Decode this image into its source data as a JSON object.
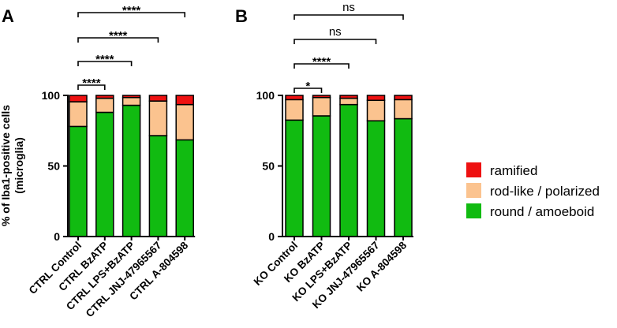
{
  "chart_data": [
    {
      "panel": "A",
      "type": "bar",
      "stacked": true,
      "ylabel": "% of Iba1-positive cells\n(microglia)",
      "ylim": [
        0,
        100
      ],
      "yticks": [
        0,
        50,
        100
      ],
      "categories": [
        "CTRL Control",
        "CTRL BzATP",
        "CTRL LPS+BzATP",
        "CTRL JNJ-47965567",
        "CTRL A-804598"
      ],
      "series": [
        {
          "name": "round / amoeboid",
          "color": "#11bb11",
          "values": [
            78,
            88,
            93,
            71.5,
            68.5
          ]
        },
        {
          "name": "rod-like / polarized",
          "color": "#fbc38f",
          "values": [
            17.5,
            10,
            5.5,
            24.5,
            25
          ]
        },
        {
          "name": "ramified",
          "color": "#ee1111",
          "values": [
            4.5,
            2,
            1.5,
            4,
            6.5
          ]
        }
      ],
      "comparisons": [
        {
          "from": 0,
          "to": 1,
          "label": "****"
        },
        {
          "from": 0,
          "to": 2,
          "label": "****"
        },
        {
          "from": 0,
          "to": 3,
          "label": "****"
        },
        {
          "from": 0,
          "to": 4,
          "label": "****"
        }
      ]
    },
    {
      "panel": "B",
      "type": "bar",
      "stacked": true,
      "ylim": [
        0,
        100
      ],
      "yticks": [
        0,
        50,
        100
      ],
      "categories": [
        "KO Control",
        "KO BzATP",
        "KO LPS+BzATP",
        "KO JNJ-47965567",
        "KO A-804598"
      ],
      "series": [
        {
          "name": "round / amoeboid",
          "color": "#11bb11",
          "values": [
            82.5,
            85.5,
            93.5,
            82,
            83.5
          ]
        },
        {
          "name": "rod-like / polarized",
          "color": "#fbc38f",
          "values": [
            14.5,
            13,
            4.5,
            14.5,
            13.5
          ]
        },
        {
          "name": "ramified",
          "color": "#ee1111",
          "values": [
            3,
            1.5,
            2,
            3.5,
            3
          ]
        }
      ],
      "comparisons": [
        {
          "from": 0,
          "to": 1,
          "label": "*"
        },
        {
          "from": 0,
          "to": 2,
          "label": "****"
        },
        {
          "from": 0,
          "to": 3,
          "label": "ns"
        },
        {
          "from": 0,
          "to": 4,
          "label": "ns"
        }
      ]
    }
  ],
  "legend": {
    "placement": "right",
    "items": [
      {
        "label": "ramified",
        "color": "#ee1111"
      },
      {
        "label": "rod-like / polarized",
        "color": "#fbc38f"
      },
      {
        "label": "round / amoeboid",
        "color": "#11bb11"
      }
    ]
  }
}
